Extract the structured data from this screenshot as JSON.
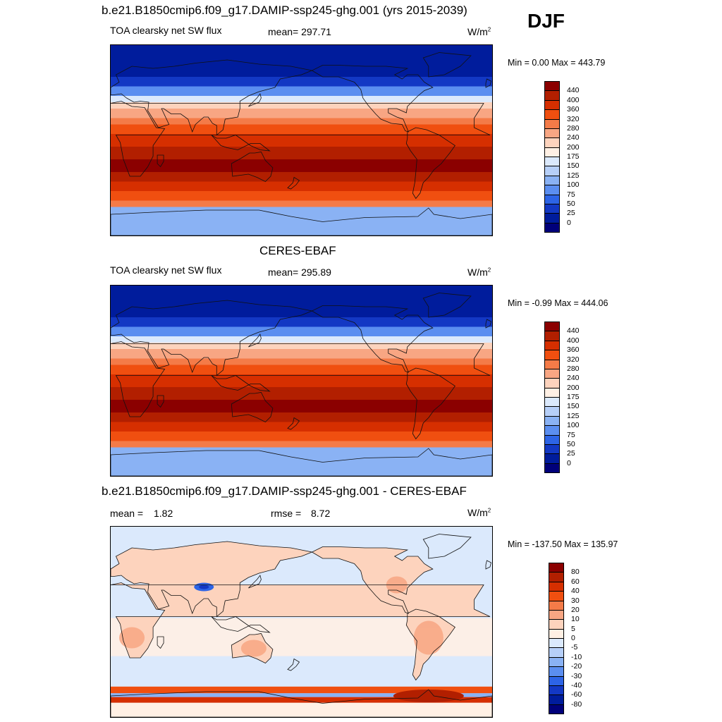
{
  "season": "DJF",
  "panel1": {
    "title": "b.e21.B1850cmip6.f09_g17.DAMIP-ssp245-ghg.001 (yrs 2015-2039)",
    "var": "TOA clearsky net SW flux",
    "mean": "mean= 297.71",
    "units": "W/m",
    "units_sup": "2",
    "minmax": "Min =   0.00 Max = 443.79"
  },
  "panel2": {
    "title": "CERES-EBAF",
    "var": "TOA clearsky net SW flux",
    "mean": "mean= 295.89",
    "units": "W/m",
    "units_sup": "2",
    "minmax": "Min =  -0.99 Max = 444.06"
  },
  "panel3": {
    "title": "b.e21.B1850cmip6.f09_g17.DAMIP-ssp245-ghg.001 - CERES-EBAF",
    "mean_label": "mean =",
    "mean_value": "1.82",
    "rmse_label": "rmse =",
    "rmse_value": "8.72",
    "units": "W/m",
    "units_sup": "2",
    "minmax": "Min = -137.50 Max = 135.97"
  },
  "colorbar_abs": {
    "labels": [
      "440",
      "400",
      "360",
      "320",
      "280",
      "240",
      "200",
      "175",
      "150",
      "125",
      "100",
      "75",
      "50",
      "25",
      "0"
    ],
    "colors": [
      "#8b0000",
      "#b21f00",
      "#d62f00",
      "#f04f10",
      "#f47b48",
      "#f8a683",
      "#fdd3bd",
      "#fff0e4",
      "#dbe9fc",
      "#b6cff8",
      "#8ab2f4",
      "#5b8ef0",
      "#2d64e6",
      "#1338c4",
      "#001c9c",
      "#00007a"
    ]
  },
  "colorbar_diff": {
    "labels": [
      "80",
      "60",
      "40",
      "30",
      "20",
      "10",
      "5",
      "0",
      "-5",
      "-10",
      "-20",
      "-30",
      "-40",
      "-60",
      "-80"
    ],
    "colors": [
      "#8b0000",
      "#b21f00",
      "#d62f00",
      "#f04f10",
      "#f47b48",
      "#f8a683",
      "#fdd3bd",
      "#fff0e4",
      "#dbe9fc",
      "#b6cff8",
      "#8ab2f4",
      "#5b8ef0",
      "#2d64e6",
      "#1338c4",
      "#001c9c",
      "#00007a"
    ]
  }
}
